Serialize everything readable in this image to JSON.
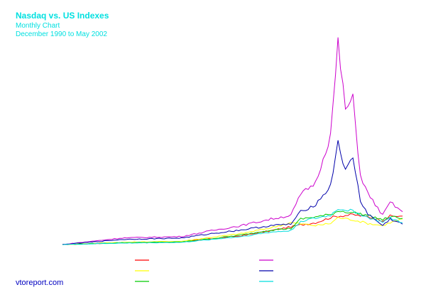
{
  "chart_data": {
    "type": "line",
    "title": "Nasdaq vs. US Indexes",
    "subtitle": "Monthly Chart",
    "date_range": "December 1990 to May 2002",
    "x_start": "1990-12",
    "x_end": "2002-05",
    "grid": false,
    "legend": "bottom-center",
    "footer": "vtoreport.com",
    "colors": {
      "title": "#00e0e0",
      "footer": "#0000c0"
    },
    "series": [
      {
        "color": "#ff0000",
        "x": [
          "1990-12",
          "1992-12",
          "1994-12",
          "1995-12",
          "1996-12",
          "1997-12",
          "1998-12",
          "1999-06",
          "1999-12",
          "2000-03",
          "2000-09",
          "2001-03",
          "2001-09",
          "2001-12",
          "2002-05"
        ],
        "values": [
          1.0,
          1.25,
          1.35,
          1.8,
          2.2,
          2.9,
          3.7,
          4.0,
          4.7,
          4.9,
          5.1,
          4.8,
          4.3,
          4.9,
          4.9
        ]
      },
      {
        "color": "#ffff00",
        "x": [
          "1990-12",
          "1992-12",
          "1994-12",
          "1995-12",
          "1996-12",
          "1997-12",
          "1998-08",
          "1999-06",
          "1999-12",
          "2000-03",
          "2000-09",
          "2001-03",
          "2001-09",
          "2001-12",
          "2002-05"
        ],
        "values": [
          1.0,
          1.3,
          1.45,
          2.0,
          2.5,
          3.3,
          4.0,
          3.6,
          3.9,
          4.7,
          4.4,
          3.9,
          3.6,
          4.0,
          4.5
        ]
      },
      {
        "color": "#00cc00",
        "x": [
          "1990-12",
          "1992-12",
          "1994-12",
          "1995-12",
          "1996-12",
          "1997-12",
          "1998-08",
          "1998-12",
          "1999-12",
          "2000-03",
          "2000-09",
          "2001-03",
          "2001-09",
          "2001-12",
          "2002-05"
        ],
        "values": [
          1.0,
          1.25,
          1.35,
          1.8,
          2.3,
          3.0,
          3.2,
          4.5,
          5.1,
          5.6,
          5.4,
          5.0,
          4.4,
          4.8,
          4.6
        ]
      },
      {
        "color": "#cc00cc",
        "x": [
          "1990-12",
          "1992-12",
          "1994-12",
          "1995-12",
          "1996-12",
          "1997-12",
          "1998-08",
          "1998-12",
          "1999-06",
          "1999-12",
          "2000-03",
          "2000-06",
          "2000-09",
          "2000-12",
          "2001-03",
          "2001-09",
          "2001-12",
          "2002-05"
        ],
        "values": [
          1.0,
          1.9,
          2.1,
          2.9,
          3.6,
          4.5,
          5.0,
          7.9,
          9.5,
          16.0,
          28.5,
          19.5,
          21.0,
          10.5,
          8.0,
          5.0,
          6.8,
          5.5
        ]
      },
      {
        "color": "#0000aa",
        "x": [
          "1990-12",
          "1992-12",
          "1994-12",
          "1995-12",
          "1996-12",
          "1997-12",
          "1998-08",
          "1998-12",
          "1999-06",
          "1999-12",
          "2000-03",
          "2000-06",
          "2000-09",
          "2000-12",
          "2001-03",
          "2001-09",
          "2001-12",
          "2002-05"
        ],
        "values": [
          1.0,
          1.7,
          1.9,
          2.5,
          3.0,
          3.6,
          3.8,
          5.5,
          6.5,
          9.0,
          15.2,
          11.0,
          13.0,
          7.0,
          5.2,
          3.6,
          4.5,
          3.8
        ]
      },
      {
        "color": "#00dddd",
        "x": [
          "1990-12",
          "1992-12",
          "1994-12",
          "1995-12",
          "1996-12",
          "1997-12",
          "1998-08",
          "1998-12",
          "1999-12",
          "2000-03",
          "2000-09",
          "2001-03",
          "2001-09",
          "2001-12",
          "2002-05"
        ],
        "values": [
          1.0,
          1.2,
          1.3,
          1.7,
          2.1,
          2.7,
          2.9,
          4.2,
          5.0,
          5.9,
          5.6,
          4.7,
          4.1,
          4.6,
          4.0
        ]
      }
    ]
  }
}
